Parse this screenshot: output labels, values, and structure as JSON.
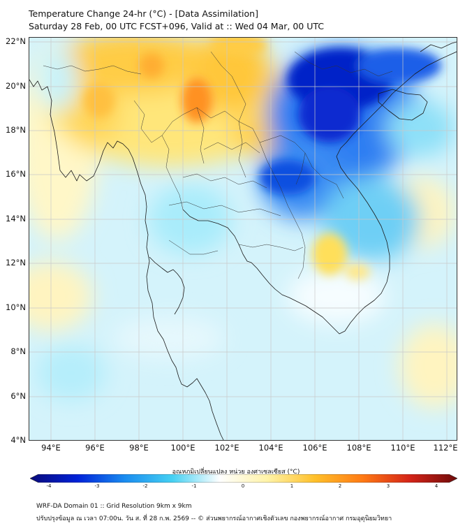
{
  "header": {
    "title_line1": "Temperature Change 24-hr (°C) - [Data Assimilation]",
    "title_line2": "Saturday 28 Feb, 00 UTC FCST+096, Valid at :: Wed 04 Mar, 00 UTC"
  },
  "map": {
    "lat_labels": [
      "22°N",
      "20°N",
      "18°N",
      "16°N",
      "14°N",
      "12°N",
      "10°N",
      "8°N",
      "6°N",
      "4°N"
    ],
    "lon_labels": [
      "94°E",
      "96°E",
      "98°E",
      "100°E",
      "102°E",
      "104°E",
      "106°E",
      "108°E",
      "110°E",
      "112°E"
    ],
    "lat_range": [
      4,
      22.2
    ],
    "lon_range": [
      93,
      112.4
    ],
    "grid_lines": true,
    "field_name": "24-hr temperature change",
    "field_units": "°C"
  },
  "colorbar": {
    "label": "อุณหภูมิเปลี่ยนแปลง หน่วย องศาเซลเซียส (°C)",
    "range": [
      -4,
      4
    ],
    "ticks": [
      "-4",
      "-3",
      "-2",
      "-1",
      "0",
      "1",
      "2",
      "3",
      "4"
    ],
    "colors": [
      "#0a0a7a",
      "#0022d8",
      "#1a8cf0",
      "#45d0f2",
      "#ffffff",
      "#fff3a8",
      "#ffc02a",
      "#ff7a14",
      "#d42418",
      "#6e0a0a"
    ]
  },
  "footer": {
    "line1": "WRF-DA Domain 01 :: Grid Resolution 9km x 9km",
    "line2": "ปรับปรุงข้อมูล ณ เวลา 07:00น. วัน ส. ที่ 28 ก.พ. 2569 -- © ส่วนพยากรณ์อากาศเชิงตัวเลข กองพยากรณ์อากาศ กรมอุตุนิยมวิทยา"
  }
}
